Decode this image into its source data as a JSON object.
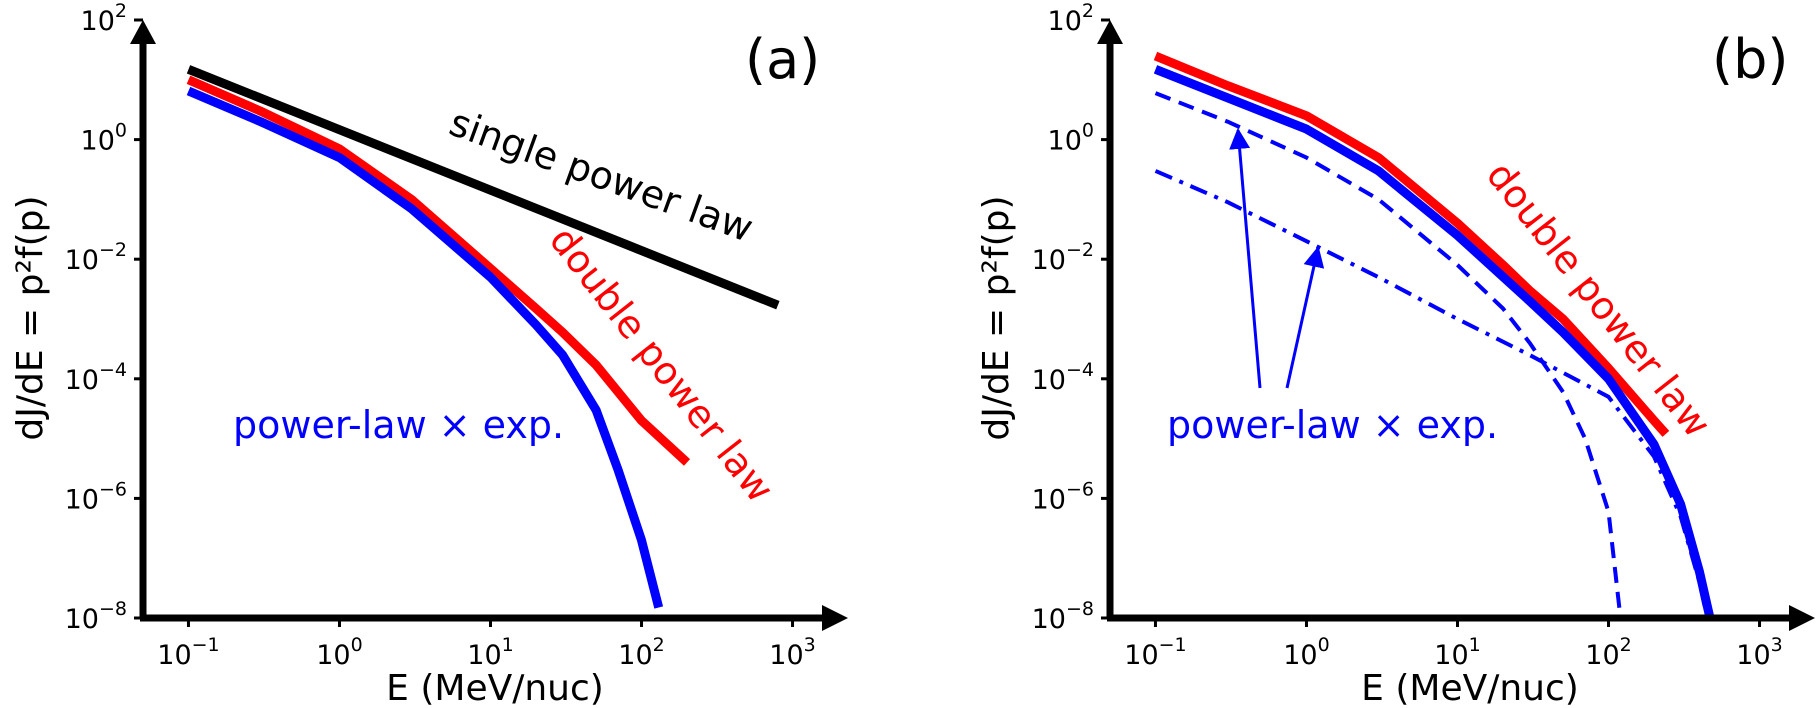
{
  "chart_data": [
    {
      "type": "line",
      "panel_label": "(a)",
      "xlabel": "E (MeV/nuc)",
      "ylabel": "dJ/dE = p²f(p)",
      "xscale": "log",
      "yscale": "log",
      "xlim": [
        0.05,
        2000
      ],
      "ylim": [
        1e-08,
        100
      ],
      "xticks": [
        {
          "v": 0.1,
          "base": "10",
          "exp": "−1"
        },
        {
          "v": 1,
          "base": "10",
          "exp": "0"
        },
        {
          "v": 10,
          "base": "10",
          "exp": "1"
        },
        {
          "v": 100,
          "base": "10",
          "exp": "2"
        },
        {
          "v": 1000,
          "base": "10",
          "exp": "3"
        }
      ],
      "yticks": [
        {
          "v": 1e-08,
          "base": "10",
          "exp": "−8"
        },
        {
          "v": 1e-06,
          "base": "10",
          "exp": "−6"
        },
        {
          "v": 0.0001,
          "base": "10",
          "exp": "−4"
        },
        {
          "v": 0.01,
          "base": "10",
          "exp": "−2"
        },
        {
          "v": 1,
          "base": "10",
          "exp": "0"
        },
        {
          "v": 100,
          "base": "10",
          "exp": "2"
        }
      ],
      "grid": false,
      "series": [
        {
          "name": "single power law",
          "color": "#000000",
          "dash": "solid",
          "width": 9,
          "x": [
            0.1,
            800
          ],
          "y": [
            15,
            0.0017
          ]
        },
        {
          "name": "double power law",
          "color": "#ff0000",
          "dash": "solid",
          "width": 9,
          "x": [
            0.1,
            0.3,
            1,
            3,
            10,
            20,
            30,
            50,
            100,
            200
          ],
          "y": [
            10,
            3,
            0.7,
            0.1,
            0.007,
            0.0015,
            0.0006,
            0.00017,
            2e-05,
            4e-06
          ]
        },
        {
          "name": "power-law × exp.",
          "color": "#0000ff",
          "dash": "solid",
          "width": 9,
          "x": [
            0.1,
            0.3,
            1,
            3,
            10,
            20,
            30,
            50,
            70,
            100,
            130
          ],
          "y": [
            6.5,
            2,
            0.5,
            0.07,
            0.005,
            0.0008,
            0.00025,
            3e-05,
            3e-06,
            2e-07,
            1.5e-08
          ]
        }
      ],
      "annotations": [
        {
          "text": "single power law",
          "color": "#000000"
        },
        {
          "text": "double power law",
          "color": "#ff0000"
        },
        {
          "text": "power-law × exp.",
          "color": "#0000ff"
        }
      ]
    },
    {
      "type": "line",
      "panel_label": "(b)",
      "xlabel": "E (MeV/nuc)",
      "ylabel": "dJ/dE = p²f(p)",
      "xscale": "log",
      "yscale": "log",
      "xlim": [
        0.05,
        2000
      ],
      "ylim": [
        1e-08,
        100
      ],
      "xticks": [
        {
          "v": 0.1,
          "base": "10",
          "exp": "−1"
        },
        {
          "v": 1,
          "base": "10",
          "exp": "0"
        },
        {
          "v": 10,
          "base": "10",
          "exp": "1"
        },
        {
          "v": 100,
          "base": "10",
          "exp": "2"
        },
        {
          "v": 1000,
          "base": "10",
          "exp": "3"
        }
      ],
      "yticks": [
        {
          "v": 1e-08,
          "base": "10",
          "exp": "−8"
        },
        {
          "v": 1e-06,
          "base": "10",
          "exp": "−6"
        },
        {
          "v": 0.0001,
          "base": "10",
          "exp": "−4"
        },
        {
          "v": 0.01,
          "base": "10",
          "exp": "−2"
        },
        {
          "v": 1,
          "base": "10",
          "exp": "0"
        },
        {
          "v": 100,
          "base": "10",
          "exp": "2"
        }
      ],
      "grid": false,
      "series": [
        {
          "name": "double power law",
          "color": "#ff0000",
          "dash": "solid",
          "width": 9,
          "x": [
            0.1,
            0.3,
            1,
            3,
            10,
            20,
            30,
            50,
            100,
            200,
            240
          ],
          "y": [
            25,
            8,
            2.5,
            0.5,
            0.04,
            0.008,
            0.003,
            0.001,
            0.00015,
            2e-05,
            1.2e-05
          ]
        },
        {
          "name": "",
          "color": "#0000ff",
          "dash": "solid",
          "width": 9,
          "x": [
            0.1,
            0.3,
            1,
            3,
            10,
            30,
            50,
            100,
            200,
            300,
            400,
            470
          ],
          "y": [
            15,
            5,
            1.5,
            0.3,
            0.025,
            0.002,
            0.0006,
            0.0001,
            8e-06,
            8e-07,
            6e-08,
            1e-08
          ]
        },
        {
          "name": "",
          "color": "#0000ff",
          "dash": "dashed",
          "width": 4,
          "x": [
            0.1,
            0.3,
            1,
            3,
            10,
            20,
            30,
            50,
            70,
            100,
            120
          ],
          "y": [
            6,
            2,
            0.5,
            0.1,
            0.008,
            0.0015,
            0.0004,
            6e-05,
            1e-05,
            6e-07,
            1e-08
          ]
        },
        {
          "name": "",
          "color": "#0000ff",
          "dash": "dashdot",
          "width": 4,
          "x": [
            0.1,
            0.3,
            1,
            3,
            10,
            30,
            100,
            200,
            300,
            400,
            450
          ],
          "y": [
            0.3,
            0.09,
            0.02,
            0.005,
            0.001,
            0.00025,
            5e-05,
            5e-06,
            5e-07,
            4e-08,
            1e-08
          ]
        }
      ],
      "annotations": [
        {
          "text": "double power law",
          "color": "#ff0000"
        },
        {
          "text": "power-law × exp.",
          "color": "#0000ff"
        }
      ]
    }
  ]
}
